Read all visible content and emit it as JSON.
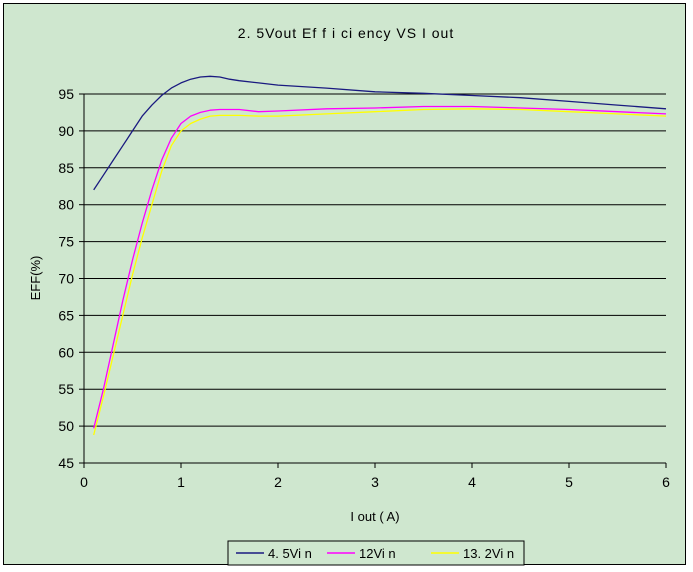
{
  "chart_data": {
    "type": "line",
    "title": "2. 5Vout  Ef f i ci ency  VS I out",
    "xlabel": "I out ( A)",
    "ylabel": "EFF(%)",
    "xlim": [
      0,
      6
    ],
    "ylim": [
      45,
      95
    ],
    "xticks": [
      "0",
      "1",
      "2",
      "3",
      "4",
      "5",
      "6"
    ],
    "yticks": [
      "45",
      "50",
      "55",
      "60",
      "65",
      "70",
      "75",
      "80",
      "85",
      "90",
      "95"
    ],
    "grid": "horizontal",
    "legend": "bottom",
    "series": [
      {
        "name": "4. 5Vi n",
        "color": "#1a1a80",
        "points": [
          [
            0.1,
            82
          ],
          [
            0.2,
            84
          ],
          [
            0.3,
            86
          ],
          [
            0.4,
            88
          ],
          [
            0.5,
            90
          ],
          [
            0.6,
            92
          ],
          [
            0.7,
            93.5
          ],
          [
            0.8,
            94.8
          ],
          [
            0.9,
            95.8
          ],
          [
            1.0,
            96.5
          ],
          [
            1.1,
            97
          ],
          [
            1.2,
            97.3
          ],
          [
            1.3,
            97.4
          ],
          [
            1.4,
            97.3
          ],
          [
            1.5,
            97
          ],
          [
            1.6,
            96.8
          ],
          [
            1.8,
            96.5
          ],
          [
            2.0,
            96.2
          ],
          [
            2.5,
            95.8
          ],
          [
            3.0,
            95.3
          ],
          [
            3.5,
            95.1
          ],
          [
            4.0,
            94.8
          ],
          [
            4.5,
            94.5
          ],
          [
            5.0,
            94.0
          ],
          [
            5.5,
            93.5
          ],
          [
            6.0,
            93.0
          ]
        ]
      },
      {
        "name": "12Vi n",
        "color": "#ff00ff",
        "points": [
          [
            0.1,
            49.7
          ],
          [
            0.2,
            55
          ],
          [
            0.3,
            61
          ],
          [
            0.4,
            67
          ],
          [
            0.5,
            72.5
          ],
          [
            0.6,
            77.5
          ],
          [
            0.7,
            82
          ],
          [
            0.8,
            86
          ],
          [
            0.9,
            89
          ],
          [
            1.0,
            91
          ],
          [
            1.1,
            92
          ],
          [
            1.2,
            92.5
          ],
          [
            1.3,
            92.8
          ],
          [
            1.4,
            92.9
          ],
          [
            1.6,
            92.9
          ],
          [
            1.8,
            92.6
          ],
          [
            2.0,
            92.7
          ],
          [
            2.5,
            93.0
          ],
          [
            3.0,
            93.1
          ],
          [
            3.5,
            93.3
          ],
          [
            4.0,
            93.3
          ],
          [
            4.5,
            93.1
          ],
          [
            5.0,
            92.9
          ],
          [
            5.5,
            92.6
          ],
          [
            6.0,
            92.3
          ]
        ]
      },
      {
        "name": "13. 2Vi n",
        "color": "#ffff00",
        "points": [
          [
            0.1,
            48.8
          ],
          [
            0.2,
            54
          ],
          [
            0.3,
            59.5
          ],
          [
            0.4,
            65
          ],
          [
            0.5,
            70.5
          ],
          [
            0.6,
            75.5
          ],
          [
            0.7,
            80
          ],
          [
            0.8,
            84.5
          ],
          [
            0.9,
            88
          ],
          [
            1.0,
            90
          ],
          [
            1.1,
            91
          ],
          [
            1.2,
            91.6
          ],
          [
            1.3,
            92
          ],
          [
            1.4,
            92.1
          ],
          [
            1.6,
            92.1
          ],
          [
            1.8,
            92
          ],
          [
            2.0,
            92
          ],
          [
            2.5,
            92.3
          ],
          [
            3.0,
            92.6
          ],
          [
            3.5,
            92.9
          ],
          [
            4.0,
            93.0
          ],
          [
            4.5,
            92.9
          ],
          [
            5.0,
            92.6
          ],
          [
            5.5,
            92.3
          ],
          [
            6.0,
            92.0
          ]
        ]
      }
    ]
  }
}
